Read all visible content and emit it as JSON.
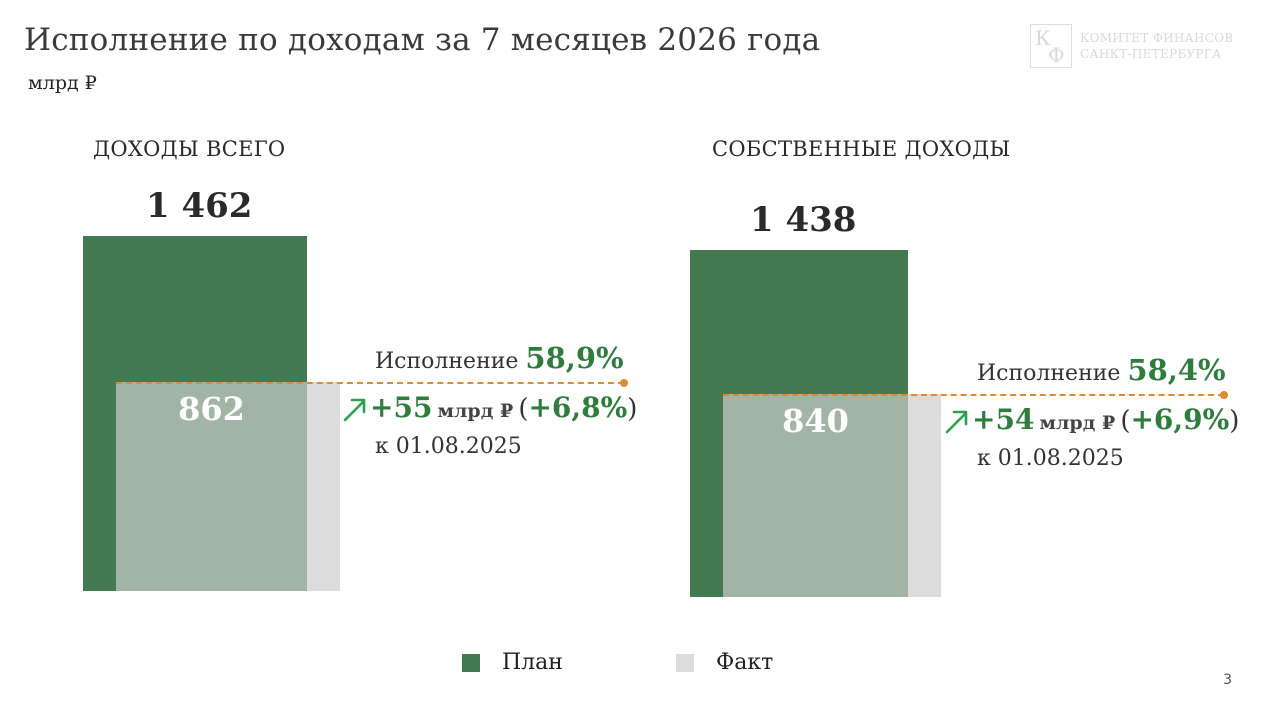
{
  "slide": {
    "title": "Исполнение по доходам за 7 месяцев 2026 года",
    "unit": "млрд ₽",
    "page_number": "3"
  },
  "logo": {
    "mark_k": "К",
    "mark_f": "Ф",
    "line1": "КОМИТЕТ ФИНАНСОВ",
    "line2": "САНКТ-ПЕТЕРБУРГА"
  },
  "colors": {
    "plan": "#447a52",
    "fact": "#dcdcdc",
    "overlap": "#a2b4a5",
    "accent_green": "#2e7d3c",
    "execution_line": "#e08a2e"
  },
  "legend": [
    {
      "label": "План",
      "color": "#447a52"
    },
    {
      "label": "Факт",
      "color": "#dcdcdc"
    }
  ],
  "chart_data": [
    {
      "type": "bar",
      "title": "ДОХОДЫ ВСЕГО",
      "categories": [
        "План",
        "Факт"
      ],
      "values": [
        1462,
        862
      ],
      "value_labels": [
        "1 462",
        "862"
      ],
      "ylim": [
        0,
        1462
      ],
      "execution_pct": 58.9,
      "execution_label": "Исполнение",
      "execution_value": "58,9%",
      "growth_abs": "+55",
      "growth_unit": "млрд ₽",
      "growth_pct_open": "(",
      "growth_pct": "+6,8%",
      "growth_pct_close": ")",
      "as_of": "к 01.08.2025"
    },
    {
      "type": "bar",
      "title": "СОБСТВЕННЫЕ ДОХОДЫ",
      "categories": [
        "План",
        "Факт"
      ],
      "values": [
        1438,
        840
      ],
      "value_labels": [
        "1 438",
        "840"
      ],
      "ylim": [
        0,
        1438
      ],
      "execution_pct": 58.4,
      "execution_label": "Исполнение",
      "execution_value": "58,4%",
      "growth_abs": "+54",
      "growth_unit": "млрд ₽",
      "growth_pct_open": "(",
      "growth_pct": "+6,9%",
      "growth_pct_close": ")",
      "as_of": "к 01.08.2025"
    }
  ]
}
